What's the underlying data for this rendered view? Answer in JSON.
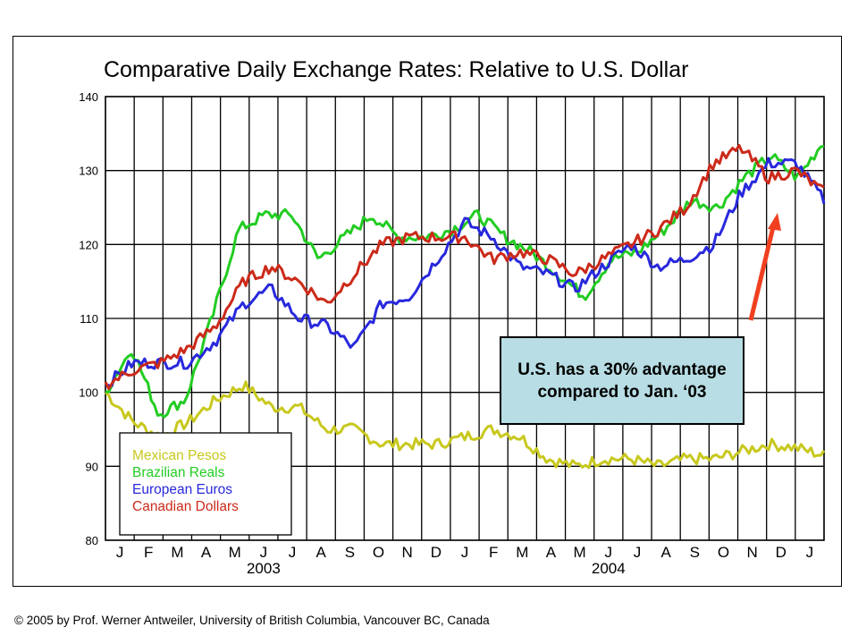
{
  "chart_data": {
    "type": "line",
    "title": "Comparative Daily Exchange Rates: Relative to U.S. Dollar",
    "ylim": [
      80,
      140
    ],
    "yticks": [
      80,
      90,
      100,
      110,
      120,
      130,
      140
    ],
    "month_labels": [
      "J",
      "F",
      "M",
      "A",
      "M",
      "J",
      "J",
      "A",
      "S",
      "O",
      "N",
      "D",
      "J",
      "F",
      "M",
      "A",
      "M",
      "J",
      "J",
      "A",
      "S",
      "O",
      "N",
      "D",
      "J"
    ],
    "year_labels": [
      {
        "text": "2003",
        "month_index": 5.5
      },
      {
        "text": "2004",
        "month_index": 17.5
      }
    ],
    "grid": true,
    "legend_position": "bottom-left",
    "series": [
      {
        "name": "Mexican Pesos",
        "color": "#c8c81e",
        "values": [
          100,
          96,
          94,
          96,
          99,
          101,
          98,
          98,
          95,
          95,
          93,
          93,
          93,
          94,
          95,
          94,
          91,
          90,
          91,
          91,
          90,
          91,
          91,
          92,
          93,
          92.5,
          91.5
        ]
      },
      {
        "name": "Brazilian Reals",
        "color": "#22cc22",
        "values": [
          100,
          106,
          97,
          99,
          110,
          122,
          124,
          124,
          118,
          121,
          124,
          121,
          121,
          122,
          124,
          121,
          119,
          116,
          113,
          118,
          119,
          122,
          126,
          125,
          129,
          132,
          129,
          134
        ]
      },
      {
        "name": "European Euros",
        "color": "#2828dd",
        "values": [
          101,
          104,
          104,
          104,
          107,
          112,
          114,
          110,
          109,
          106,
          112,
          113,
          118,
          123,
          121,
          117,
          116,
          114,
          117,
          120,
          117,
          118,
          120,
          127,
          131,
          131,
          126
        ]
      },
      {
        "name": "Canadian Dollars",
        "color": "#cc2a1a",
        "values": [
          101,
          103,
          104,
          106,
          109,
          115,
          117,
          115,
          112,
          116,
          120,
          121,
          121,
          121,
          118,
          119,
          118,
          116,
          118,
          120,
          122,
          125,
          131,
          133,
          129,
          130,
          127
        ]
      }
    ]
  },
  "callout": {
    "text": "U.S. has a 30% advantage compared to Jan. ‘03"
  },
  "copyright": "© 2005 by Prof. Werner Antweiler, University of British Columbia, Vancouver BC, Canada"
}
